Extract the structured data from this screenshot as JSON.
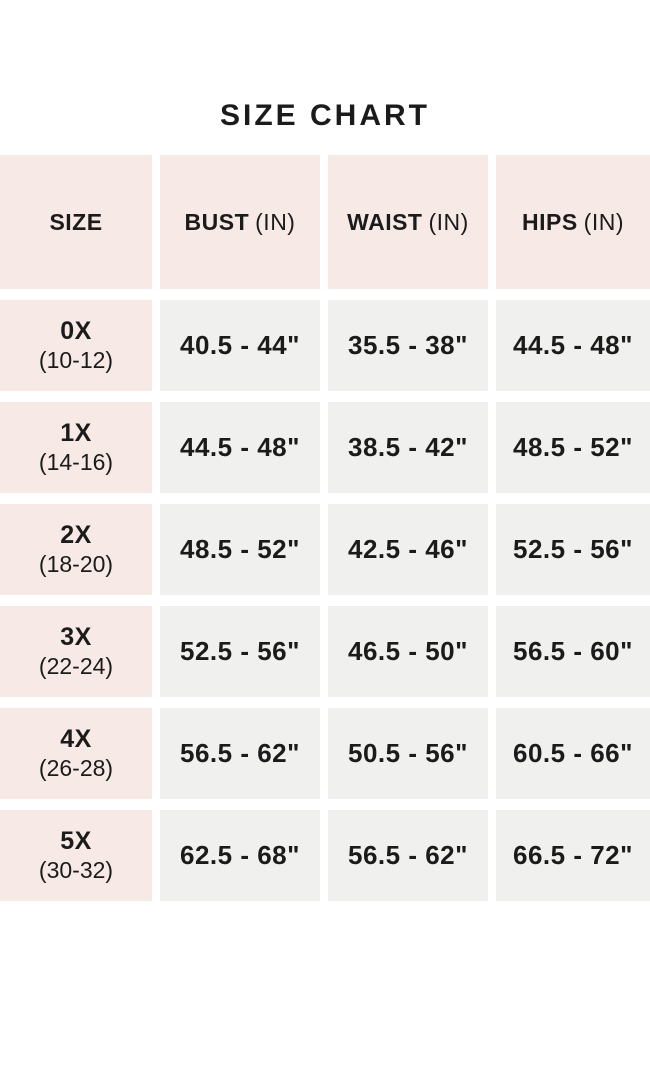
{
  "title": "SIZE CHART",
  "colors": {
    "page_bg": "#ffffff",
    "header_bg": "#f7e9e5",
    "size_col_bg": "#f7e9e5",
    "data_cell_bg": "#f0f0ee",
    "text": "#1b1b1b"
  },
  "chart_data": {
    "type": "table",
    "title": "SIZE CHART",
    "columns": [
      "SIZE",
      "BUST (IN)",
      "WAIST (IN)",
      "HIPS (IN)"
    ],
    "rows": [
      [
        "0X (10-12)",
        "40.5 - 44\"",
        "35.5 - 38\"",
        "44.5 - 48\""
      ],
      [
        "1X (14-16)",
        "44.5 - 48\"",
        "38.5 - 42\"",
        "48.5 - 52\""
      ],
      [
        "2X (18-20)",
        "48.5 - 52\"",
        "42.5 - 46\"",
        "52.5 - 56\""
      ],
      [
        "3X (22-24)",
        "52.5 - 56\"",
        "46.5 - 50\"",
        "56.5 - 60\""
      ],
      [
        "4X (26-28)",
        "56.5 - 62\"",
        "50.5 - 56\"",
        "60.5 - 66\""
      ],
      [
        "5X (30-32)",
        "62.5 - 68\"",
        "56.5 - 62\"",
        "66.5 - 72\""
      ]
    ]
  },
  "table": {
    "headers": [
      {
        "label": "SIZE",
        "unit": ""
      },
      {
        "label": "BUST",
        "unit": "(IN)"
      },
      {
        "label": "WAIST",
        "unit": "(IN)"
      },
      {
        "label": "HIPS",
        "unit": "(IN)"
      }
    ],
    "rows": [
      {
        "size": "0X",
        "size_range": "(10-12)",
        "bust": "40.5 - 44\"",
        "waist": "35.5 - 38\"",
        "hips": "44.5 - 48\""
      },
      {
        "size": "1X",
        "size_range": "(14-16)",
        "bust": "44.5 - 48\"",
        "waist": "38.5 - 42\"",
        "hips": "48.5 - 52\""
      },
      {
        "size": "2X",
        "size_range": "(18-20)",
        "bust": "48.5 - 52\"",
        "waist": "42.5 - 46\"",
        "hips": "52.5 - 56\""
      },
      {
        "size": "3X",
        "size_range": "(22-24)",
        "bust": "52.5 - 56\"",
        "waist": "46.5 - 50\"",
        "hips": "56.5 - 60\""
      },
      {
        "size": "4X",
        "size_range": "(26-28)",
        "bust": "56.5 - 62\"",
        "waist": "50.5 - 56\"",
        "hips": "60.5 - 66\""
      },
      {
        "size": "5X",
        "size_range": "(30-32)",
        "bust": "62.5 - 68\"",
        "waist": "56.5 - 62\"",
        "hips": "66.5 - 72\""
      }
    ]
  }
}
